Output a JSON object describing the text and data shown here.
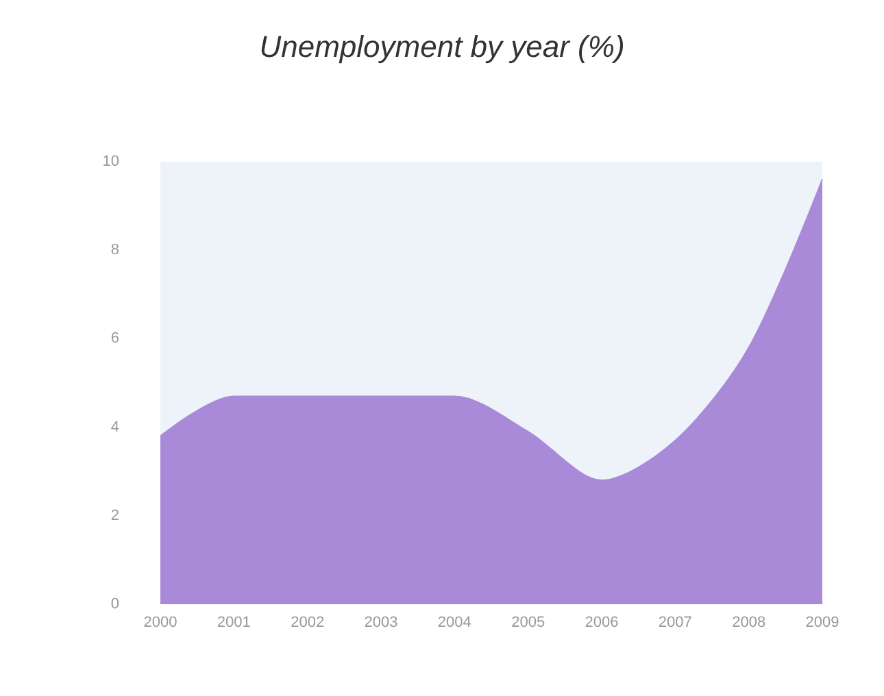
{
  "chart_data": {
    "type": "area",
    "title": "Unemployment by year (%)",
    "categories": [
      "2000",
      "2001",
      "2002",
      "2003",
      "2004",
      "2005",
      "2006",
      "2007",
      "2008",
      "2009"
    ],
    "series": [
      {
        "color": "#a88ad8",
        "values": [
          3.8,
          4.7,
          4.7,
          4.7,
          4.7,
          3.9,
          2.8,
          3.7,
          5.8,
          9.6
        ]
      }
    ],
    "ylim": [
      0,
      10
    ],
    "yticks": [
      0,
      2,
      4,
      6,
      8,
      10
    ],
    "grid": false
  }
}
